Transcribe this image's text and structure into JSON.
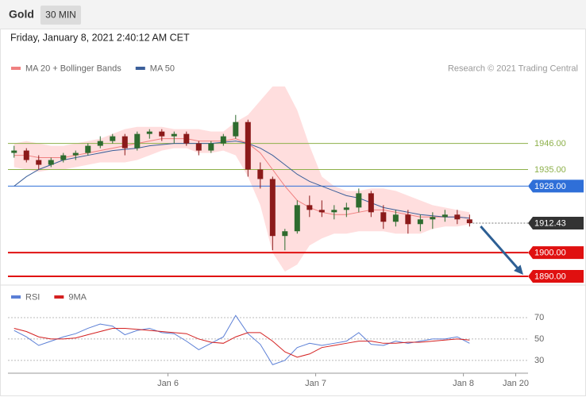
{
  "header": {
    "title": "Gold",
    "interval": "30 MIN",
    "datetime": "Friday, January 8, 2021 2:40:12 AM CET"
  },
  "chart_data": [
    {
      "type": "candlestick",
      "copyright": "Research © 2021 Trading Central",
      "xlim": [
        -26,
        58.5
      ],
      "ylim": [
        1887,
        1983
      ],
      "xticks": [
        {
          "value": 0,
          "label": "Jan 6"
        },
        {
          "value": 24,
          "label": "Jan 7"
        },
        {
          "value": 48,
          "label": "Jan 8"
        },
        {
          "value": 56.5,
          "label": "Jan 20"
        }
      ],
      "up_color": "#2e6b2e",
      "down_color": "#8b1a1a",
      "x": [
        -25,
        -23,
        -21,
        -19,
        -17,
        -15,
        -13,
        -11,
        -9,
        -7,
        -5,
        -3,
        -1,
        1,
        3,
        5,
        7,
        9,
        11,
        13,
        15,
        17,
        19,
        21,
        23,
        25,
        27,
        29,
        31,
        33,
        35,
        37,
        39,
        41,
        43,
        45,
        47,
        49
      ],
      "open": [
        1942,
        1943,
        1939,
        1937,
        1939,
        1941,
        1942,
        1945,
        1947,
        1949,
        1944,
        1950,
        1951,
        1949,
        1950,
        1946,
        1943,
        1946,
        1949,
        1955,
        1935,
        1931,
        1907,
        1909,
        1920,
        1918,
        1917,
        1918,
        1919,
        1925,
        1917,
        1913,
        1916,
        1912,
        1914,
        1915,
        1916,
        1914
      ],
      "high": [
        1945,
        1944,
        1941,
        1940,
        1942,
        1943,
        1946,
        1949,
        1950,
        1950,
        1951,
        1952,
        1952,
        1951,
        1951,
        1947,
        1947,
        1950,
        1958,
        1956,
        1938,
        1932,
        1910,
        1922,
        1924,
        1922,
        1920,
        1921,
        1927,
        1926,
        1920,
        1918,
        1918,
        1916,
        1917,
        1918,
        1918,
        1916
      ],
      "low": [
        1940,
        1938,
        1935,
        1936,
        1938,
        1939,
        1941,
        1944,
        1946,
        1941,
        1943,
        1948,
        1947,
        1946,
        1945,
        1941,
        1942,
        1945,
        1948,
        1932,
        1927,
        1901,
        1901,
        1908,
        1915,
        1915,
        1914,
        1915,
        1917,
        1915,
        1910,
        1911,
        1908,
        1909,
        1910,
        1913,
        1912,
        1911
      ],
      "close": [
        1943,
        1939,
        1937,
        1939,
        1941,
        1942,
        1945,
        1947,
        1949,
        1944,
        1950,
        1951,
        1949,
        1950,
        1946,
        1943,
        1946,
        1949,
        1955,
        1935,
        1931,
        1907,
        1909,
        1920,
        1918,
        1917,
        1918,
        1919,
        1925,
        1917,
        1913,
        1916,
        1912,
        1914,
        1915,
        1916,
        1914,
        1912.43
      ],
      "series": [
        {
          "name": "MA 20 + Bollinger Bands",
          "color": "#f08080",
          "band_color": "#ffd6d6",
          "values": [
            1941,
            1941,
            1940,
            1940,
            1940,
            1941,
            1942,
            1943,
            1944,
            1945,
            1946,
            1947,
            1948,
            1948,
            1948,
            1947,
            1947,
            1947,
            1948,
            1946,
            1942,
            1935,
            1928,
            1922,
            1919,
            1917,
            1916,
            1916,
            1917,
            1918,
            1918,
            1917,
            1916,
            1915,
            1915,
            1915,
            1915,
            1914.5
          ],
          "upper": [
            1946,
            1947,
            1946,
            1945,
            1945,
            1946,
            1947,
            1948,
            1950,
            1952,
            1953,
            1953,
            1953,
            1952,
            1952,
            1952,
            1951,
            1951,
            1955,
            1958,
            1964,
            1970,
            1970,
            1960,
            1945,
            1932,
            1928,
            1926,
            1926,
            1927,
            1927,
            1926,
            1924,
            1922,
            1920,
            1919,
            1918,
            1917
          ],
          "lower": [
            1936,
            1935,
            1934,
            1935,
            1935,
            1936,
            1937,
            1938,
            1938,
            1938,
            1939,
            1941,
            1943,
            1944,
            1944,
            1942,
            1942,
            1943,
            1941,
            1932,
            1920,
            1900,
            1892,
            1895,
            1903,
            1906,
            1908,
            1908,
            1909,
            1909,
            1909,
            1908,
            1908,
            1908,
            1910,
            1911,
            1911,
            1912
          ]
        },
        {
          "name": "MA 50",
          "color": "#3b5f9a",
          "values": [
            1928,
            1932,
            1935,
            1937,
            1939,
            1940,
            1941,
            1942,
            1943,
            1943.5,
            1944,
            1945,
            1945.5,
            1946,
            1946,
            1946,
            1946,
            1946.5,
            1947,
            1946,
            1944,
            1941,
            1937,
            1933,
            1930,
            1928,
            1926,
            1924,
            1923,
            1921,
            1919,
            1918,
            1917,
            1916,
            1915.5,
            1915,
            1915,
            1914.5
          ]
        }
      ],
      "levels": [
        {
          "value": 1946,
          "label": "1946.00",
          "color": "#8db04a",
          "style": "thin"
        },
        {
          "value": 1935,
          "label": "1935.00",
          "color": "#8db04a",
          "style": "thin"
        },
        {
          "value": 1928,
          "label": "1928.00",
          "color": "#2f6fd8",
          "style": "boxed"
        },
        {
          "value": 1912.43,
          "label": "1912.43",
          "color": "#333333",
          "style": "current"
        },
        {
          "value": 1900,
          "label": "1900.00",
          "color": "#e01010",
          "style": "thick"
        },
        {
          "value": 1890,
          "label": "1890.00",
          "color": "#e01010",
          "style": "thick"
        }
      ]
    },
    {
      "type": "line",
      "ylim": [
        18,
        96
      ],
      "yticks": [
        70,
        50,
        30
      ],
      "grid": true,
      "series": [
        {
          "name": "RSI",
          "color": "#5b7fd6",
          "values": [
            58,
            52,
            44,
            48,
            52,
            55,
            60,
            64,
            62,
            54,
            58,
            60,
            56,
            55,
            48,
            40,
            46,
            52,
            72,
            55,
            45,
            26,
            30,
            42,
            46,
            44,
            46,
            48,
            56,
            45,
            44,
            48,
            46,
            48,
            50,
            50,
            52,
            46
          ]
        },
        {
          "name": "9MA",
          "color": "#d42020",
          "values": [
            60,
            57,
            52,
            50,
            50,
            51,
            54,
            57,
            60,
            60,
            59,
            58,
            57,
            56,
            55,
            50,
            47,
            46,
            52,
            56,
            56,
            48,
            38,
            33,
            36,
            42,
            44,
            46,
            48,
            48,
            46,
            46,
            47,
            47,
            48,
            49,
            50,
            49
          ]
        }
      ]
    }
  ]
}
